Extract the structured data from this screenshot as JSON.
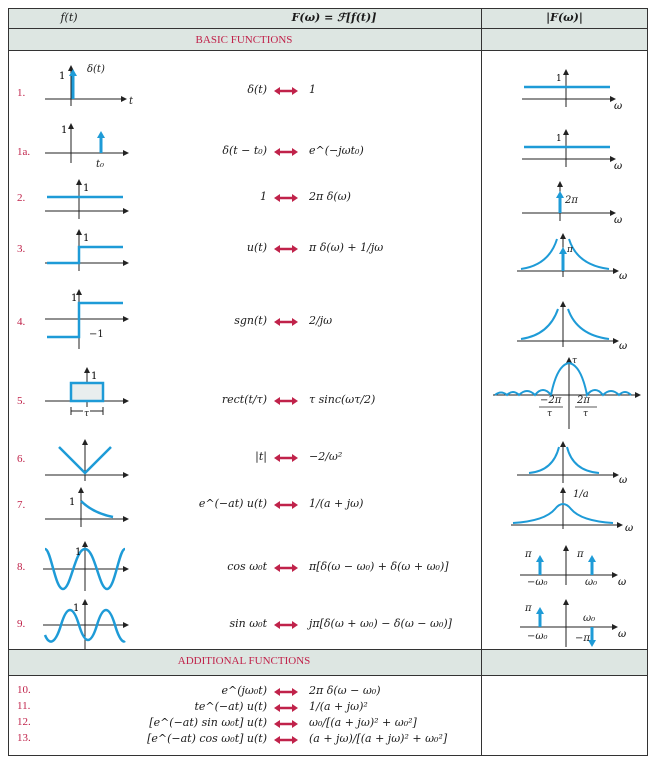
{
  "header": {
    "col1": "f(t)",
    "col2": "F(ω) = ℱ[f(t)]",
    "col3": "|F(ω)|"
  },
  "sections": {
    "basic": "BASIC FUNCTIONS",
    "additional": "ADDITIONAL FUNCTIONS"
  },
  "rows": [
    {
      "num": "1.",
      "ft": "δ(t)",
      "fw": "1",
      "pulse_label": "δ(t)"
    },
    {
      "num": "1a.",
      "ft": "δ(t − t₀)",
      "fw": "e^(−jωt₀)",
      "t0_label": "t₀"
    },
    {
      "num": "2.",
      "ft": "1",
      "fw": "2π δ(ω)",
      "mag_label": "2π"
    },
    {
      "num": "3.",
      "ft": "u(t)",
      "fw": "π δ(ω) + 1/jω",
      "mag_label": "π"
    },
    {
      "num": "4.",
      "ft": "sgn(t)",
      "fw": "2/jω",
      "neg_label": "−1"
    },
    {
      "num": "5.",
      "ft": "rect(t/τ)",
      "fw": "τ sinc(ωτ/2)",
      "tau_label": "τ",
      "ln": "−2π",
      "lp": "2π"
    },
    {
      "num": "6.",
      "ft": "|t|",
      "fw": "−2/ω²"
    },
    {
      "num": "7.",
      "ft": "e^(−at) u(t)",
      "fw": "1/(a + jω)",
      "mag_label": "1/a"
    },
    {
      "num": "8.",
      "ft": "cos ω₀t",
      "fw": "π[δ(ω − ω₀) + δ(ω + ω₀)]",
      "pi": "π",
      "w0": "ω₀",
      "mw0": "−ω₀"
    },
    {
      "num": "9.",
      "ft": "sin ω₀t",
      "fw": "jπ[δ(ω + ω₀) − δ(ω − ω₀)]",
      "pi": "π",
      "mpi": "−π",
      "w0": "ω₀",
      "mw0": "−ω₀"
    }
  ],
  "additional": [
    {
      "num": "10.",
      "ft": "e^(jω₀t)",
      "fw": "2π δ(ω − ω₀)"
    },
    {
      "num": "11.",
      "ft": "te^(−at) u(t)",
      "fw": "1/(a + jω)²"
    },
    {
      "num": "12.",
      "ft": "[e^(−at) sin ω₀t] u(t)",
      "fw": "ω₀/[(a + jω)² + ω₀²]"
    },
    {
      "num": "13.",
      "ft": "[e^(−at) cos ω₀t] u(t)",
      "fw": "(a + jω)/[(a + jω)² + ω₀²]"
    }
  ],
  "axis": {
    "t": "t",
    "w": "ω",
    "one": "1",
    "tau": "τ"
  },
  "colors": {
    "accent": "#1e9bd7",
    "arrow": "#c0224a",
    "section": "#c0224a",
    "shade": "#dde6e2"
  }
}
